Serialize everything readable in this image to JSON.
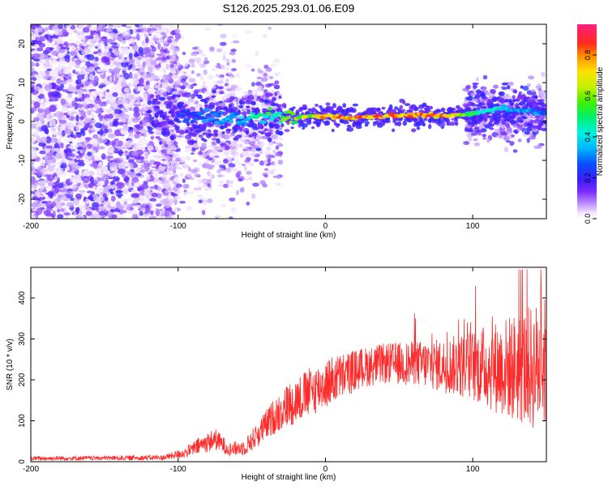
{
  "title": "S126.2025.293.01.06.E09",
  "colors": {
    "axis": "#000000",
    "snr_line": "#ff2a2a",
    "spectrogram_low": "#7b2cff",
    "spectrogram_high": "#ff2060"
  },
  "chart_data": [
    {
      "type": "heatmap",
      "name": "spectrogram",
      "xlabel": "Height of straight line (km)",
      "ylabel": "Frequency (Hz)",
      "xlim": [
        -200,
        150
      ],
      "ylim": [
        -25,
        25
      ],
      "xticks": [
        -200,
        -100,
        0,
        100
      ],
      "xtick_labels": [
        "-200",
        "-100",
        "0",
        "100"
      ],
      "yticks": [
        -20,
        -10,
        0,
        10,
        20
      ],
      "ytick_labels": [
        "-20",
        "-10",
        "0",
        "10",
        "20"
      ],
      "colorbar": {
        "label": "Normalized spectral amplitude",
        "range": [
          0.0,
          0.95
        ],
        "ticks": [
          0.0,
          0.2,
          0.4,
          0.6,
          0.8
        ],
        "tick_labels": [
          "0.0",
          "0.2",
          "0.4",
          "0.6",
          "0.8"
        ],
        "colormap": "rainbow"
      },
      "signal_band": {
        "description": "narrow high-amplitude band near 0-2 Hz",
        "x": [
          -100,
          -80,
          -60,
          -40,
          -20,
          0,
          20,
          40,
          60,
          80,
          100,
          120,
          150
        ],
        "center_hz": [
          2,
          1.5,
          0.5,
          1.5,
          1,
          1.5,
          1,
          1.5,
          1.5,
          1.5,
          2,
          3.5,
          2
        ],
        "peak_amplitude": [
          0.25,
          0.35,
          0.4,
          0.55,
          0.7,
          0.85,
          0.9,
          0.92,
          0.9,
          0.9,
          0.6,
          0.45,
          0.35
        ]
      },
      "noise_region": {
        "x_from": -200,
        "x_to": -100,
        "amplitude": [
          0.05,
          0.2
        ]
      }
    },
    {
      "type": "line",
      "name": "snr",
      "xlabel": "Height of straight line (km)",
      "ylabel": "SNR (10 * v/v)",
      "xlim": [
        -200,
        150
      ],
      "ylim": [
        0,
        475
      ],
      "xticks": [
        -200,
        -100,
        0,
        100
      ],
      "xtick_labels": [
        "-200",
        "-100",
        "0",
        "100"
      ],
      "yticks": [
        0,
        100,
        200,
        300,
        400
      ],
      "ytick_labels": [
        "0",
        "100",
        "200",
        "300",
        "400"
      ],
      "envelope": {
        "x": [
          -200,
          -150,
          -110,
          -95,
          -85,
          -75,
          -65,
          -55,
          -45,
          -35,
          -25,
          -15,
          -5,
          5,
          15,
          25,
          40,
          60,
          80,
          100,
          120,
          140,
          150
        ],
        "center": [
          8,
          9,
          10,
          22,
          40,
          55,
          30,
          35,
          70,
          110,
          140,
          160,
          180,
          200,
          215,
          230,
          240,
          240,
          235,
          235,
          230,
          230,
          240
        ],
        "spread": [
          5,
          5,
          6,
          12,
          20,
          25,
          15,
          18,
          30,
          40,
          50,
          55,
          55,
          55,
          50,
          45,
          45,
          50,
          60,
          80,
          110,
          140,
          150
        ]
      },
      "max_value": 470
    }
  ]
}
